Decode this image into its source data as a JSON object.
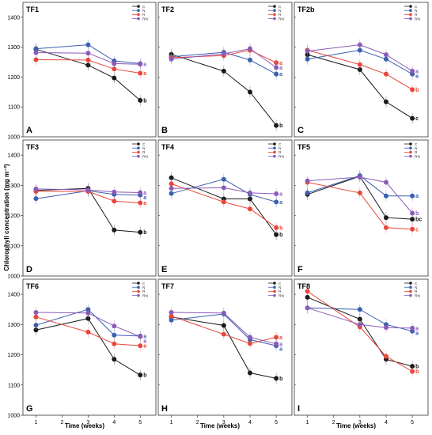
{
  "figure": {
    "ylabel": "Chlorophyll concentration (mg m⁻²)",
    "xlabel": "Time (weeks)",
    "legend_labels": [
      "C",
      "N",
      "R",
      "RN"
    ]
  },
  "colors": {
    "C": "#1a1a1a",
    "N": "#3a5fb0",
    "R": "#e8473a",
    "RN": "#8a5bb8"
  },
  "chart_data": [
    {
      "type": "line",
      "title": "TF1",
      "letter": "A",
      "x": [
        1,
        3,
        4,
        5
      ],
      "xlim": [
        0.5,
        5.6
      ],
      "ylim": [
        1000,
        1450
      ],
      "yticks": [
        1000,
        1100,
        1200,
        1300,
        1400
      ],
      "xticks": [],
      "series": [
        {
          "name": "C",
          "values": [
            1293,
            1240,
            1197,
            1122
          ]
        },
        {
          "name": "N",
          "values": [
            1295,
            1308,
            1254,
            1245
          ]
        },
        {
          "name": "R",
          "values": [
            1258,
            1257,
            1227,
            1213
          ]
        },
        {
          "name": "RN",
          "values": [
            1282,
            1280,
            1245,
            1243
          ]
        }
      ],
      "end_labels": [
        {
          "text": "a",
          "series": "RN"
        },
        {
          "text": "a",
          "series": "R"
        },
        {
          "text": "b",
          "series": "C"
        }
      ]
    },
    {
      "type": "line",
      "title": "TF2",
      "letter": "B",
      "x": [
        1,
        3,
        4,
        5
      ],
      "xlim": [
        0.5,
        5.6
      ],
      "ylim": [
        1000,
        1450
      ],
      "yticks": [],
      "xticks": [],
      "series": [
        {
          "name": "C",
          "values": [
            1276,
            1220,
            1150,
            1038
          ]
        },
        {
          "name": "N",
          "values": [
            1268,
            1283,
            1257,
            1210
          ]
        },
        {
          "name": "R",
          "values": [
            1265,
            1272,
            1290,
            1248
          ]
        },
        {
          "name": "RN",
          "values": [
            1260,
            1278,
            1295,
            1232
          ]
        }
      ],
      "end_labels": [
        {
          "text": "a",
          "series": "R"
        },
        {
          "text": "a",
          "series": "RN"
        },
        {
          "text": "a",
          "series": "N"
        },
        {
          "text": "b",
          "series": "C"
        }
      ]
    },
    {
      "type": "line",
      "title": "TF2b",
      "letter": "C",
      "x": [
        1,
        3,
        4,
        5
      ],
      "xlim": [
        0.5,
        5.6
      ],
      "ylim": [
        1000,
        1450
      ],
      "yticks": [],
      "xticks": [],
      "series": [
        {
          "name": "C",
          "values": [
            1275,
            1225,
            1117,
            1062
          ]
        },
        {
          "name": "N",
          "values": [
            1260,
            1290,
            1260,
            1210
          ]
        },
        {
          "name": "R",
          "values": [
            1290,
            1242,
            1210,
            1158
          ]
        },
        {
          "name": "RN",
          "values": [
            1287,
            1308,
            1275,
            1220
          ]
        }
      ],
      "end_labels": [
        {
          "text": "a",
          "series": "RN"
        },
        {
          "text": "a",
          "series": "N"
        },
        {
          "text": "b",
          "series": "R"
        },
        {
          "text": "c",
          "series": "C"
        }
      ]
    },
    {
      "type": "line",
      "title": "TF3",
      "letter": "D",
      "x": [
        1,
        3,
        4,
        5
      ],
      "xlim": [
        0.5,
        5.6
      ],
      "ylim": [
        1000,
        1450
      ],
      "yticks": [
        1000,
        1100,
        1200,
        1300,
        1400
      ],
      "xticks": [],
      "series": [
        {
          "name": "C",
          "values": [
            1283,
            1290,
            1152,
            1145
          ]
        },
        {
          "name": "N",
          "values": [
            1256,
            1282,
            1270,
            1268
          ]
        },
        {
          "name": "R",
          "values": [
            1280,
            1280,
            1248,
            1242
          ]
        },
        {
          "name": "RN",
          "values": [
            1288,
            1285,
            1278,
            1276
          ]
        }
      ],
      "end_labels": [
        {
          "text": "a",
          "series": "RN"
        },
        {
          "text": "a",
          "series": "N"
        },
        {
          "text": "a",
          "series": "R"
        },
        {
          "text": "b",
          "series": "C"
        }
      ]
    },
    {
      "type": "line",
      "title": "TF4",
      "letter": "E",
      "x": [
        1,
        3,
        4,
        5
      ],
      "xlim": [
        0.5,
        5.6
      ],
      "ylim": [
        1000,
        1450
      ],
      "yticks": [],
      "xticks": [],
      "series": [
        {
          "name": "C",
          "values": [
            1325,
            1255,
            1255,
            1137
          ]
        },
        {
          "name": "N",
          "values": [
            1273,
            1320,
            1270,
            1245
          ]
        },
        {
          "name": "R",
          "values": [
            1305,
            1245,
            1222,
            1160
          ]
        },
        {
          "name": "RN",
          "values": [
            1290,
            1292,
            1275,
            1272
          ]
        }
      ],
      "end_labels": [
        {
          "text": "a",
          "series": "RN"
        },
        {
          "text": "a",
          "series": "N"
        },
        {
          "text": "b",
          "series": "R"
        },
        {
          "text": "b",
          "series": "C"
        }
      ]
    },
    {
      "type": "line",
      "title": "TF5",
      "letter": "F",
      "x": [
        1,
        3,
        4,
        5
      ],
      "xlim": [
        0.5,
        5.6
      ],
      "ylim": [
        1000,
        1450
      ],
      "yticks": [],
      "xticks": [],
      "series": [
        {
          "name": "C",
          "values": [
            1270,
            1330,
            1193,
            1188
          ]
        },
        {
          "name": "N",
          "values": [
            1275,
            1332,
            1265,
            1265
          ]
        },
        {
          "name": "R",
          "values": [
            1310,
            1275,
            1160,
            1155
          ]
        },
        {
          "name": "RN",
          "values": [
            1315,
            1327,
            1310,
            1208
          ]
        }
      ],
      "end_labels": [
        {
          "text": "a",
          "series": "N"
        },
        {
          "text": "b",
          "series": "RN"
        },
        {
          "text": "bc",
          "series": "C"
        },
        {
          "text": "c",
          "series": "R"
        }
      ]
    },
    {
      "type": "line",
      "title": "TF6",
      "letter": "G",
      "x": [
        1,
        3,
        4,
        5
      ],
      "xlim": [
        0.5,
        5.6
      ],
      "ylim": [
        1000,
        1450
      ],
      "yticks": [
        1000,
        1100,
        1200,
        1300,
        1400
      ],
      "xticks": [
        1,
        2,
        3,
        4,
        5
      ],
      "series": [
        {
          "name": "C",
          "values": [
            1282,
            1320,
            1185,
            1133
          ]
        },
        {
          "name": "N",
          "values": [
            1298,
            1350,
            1265,
            1262
          ]
        },
        {
          "name": "R",
          "values": [
            1325,
            1275,
            1236,
            1230
          ]
        },
        {
          "name": "RN",
          "values": [
            1340,
            1338,
            1295,
            1260
          ]
        }
      ],
      "end_labels": [
        {
          "text": "a",
          "series": "N"
        },
        {
          "text": "a",
          "series": "RN"
        },
        {
          "text": "a",
          "series": "R"
        },
        {
          "text": "b",
          "series": "C"
        }
      ]
    },
    {
      "type": "line",
      "title": "TF7",
      "letter": "H",
      "x": [
        1,
        3,
        4,
        5
      ],
      "xlim": [
        0.5,
        5.6
      ],
      "ylim": [
        1000,
        1450
      ],
      "yticks": [],
      "xticks": [
        1,
        2,
        3,
        4,
        5
      ],
      "series": [
        {
          "name": "C",
          "values": [
            1325,
            1297,
            1140,
            1122
          ]
        },
        {
          "name": "N",
          "values": [
            1315,
            1335,
            1250,
            1230
          ]
        },
        {
          "name": "R",
          "values": [
            1328,
            1268,
            1237,
            1258
          ]
        },
        {
          "name": "RN",
          "values": [
            1340,
            1338,
            1258,
            1236
          ]
        }
      ],
      "end_labels": [
        {
          "text": "a",
          "series": "R"
        },
        {
          "text": "a",
          "series": "RN"
        },
        {
          "text": "a",
          "series": "N"
        },
        {
          "text": "b",
          "series": "C"
        }
      ]
    },
    {
      "type": "line",
      "title": "TF8",
      "letter": "I",
      "x": [
        1,
        3,
        4,
        5
      ],
      "xlim": [
        0.5,
        5.6
      ],
      "ylim": [
        1000,
        1450
      ],
      "yticks": [],
      "xticks": [
        1,
        2,
        3,
        4,
        5
      ],
      "series": [
        {
          "name": "C",
          "values": [
            1390,
            1318,
            1185,
            1162
          ]
        },
        {
          "name": "N",
          "values": [
            1355,
            1350,
            1300,
            1278
          ]
        },
        {
          "name": "R",
          "values": [
            1410,
            1292,
            1195,
            1145
          ]
        },
        {
          "name": "RN",
          "values": [
            1355,
            1300,
            1290,
            1288
          ]
        }
      ],
      "end_labels": [
        {
          "text": "a",
          "series": "RN"
        },
        {
          "text": "a",
          "series": "N"
        },
        {
          "text": "b",
          "series": "C"
        },
        {
          "text": "b",
          "series": "R"
        }
      ]
    }
  ]
}
